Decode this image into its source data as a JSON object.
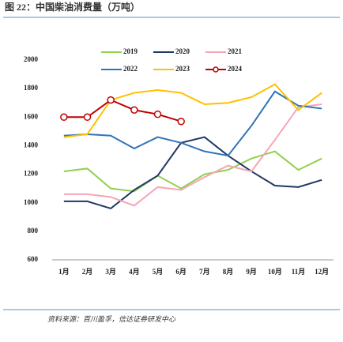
{
  "chart_data": {
    "type": "line",
    "title": "图 22：中国柴油消费量（万吨）",
    "source": "资料来源：百川盈孚，信达证券研发中心",
    "categories": [
      "1月",
      "2月",
      "3月",
      "4月",
      "5月",
      "6月",
      "7月",
      "8月",
      "9月",
      "10月",
      "11月",
      "12月"
    ],
    "ylim": [
      600,
      2000
    ],
    "yticks": [
      600,
      800,
      1000,
      1200,
      1400,
      1600,
      1800,
      2000
    ],
    "series": [
      {
        "name": "2019",
        "color": "#92d050",
        "values": [
          1220,
          1240,
          1100,
          1080,
          1190,
          1100,
          1200,
          1230,
          1310,
          1360,
          1230,
          1310
        ]
      },
      {
        "name": "2020",
        "color": "#1f3864",
        "values": [
          1010,
          1010,
          960,
          1090,
          1190,
          1420,
          1460,
          1330,
          1220,
          1120,
          1110,
          1160
        ]
      },
      {
        "name": "2021",
        "color": "#f4a6b6",
        "values": [
          1060,
          1060,
          1040,
          980,
          1110,
          1090,
          1180,
          1260,
          1220,
          1440,
          1670,
          1690
        ]
      },
      {
        "name": "2022",
        "color": "#2e75b6",
        "values": [
          1470,
          1480,
          1470,
          1380,
          1460,
          1420,
          1360,
          1330,
          1540,
          1780,
          1680,
          1660
        ]
      },
      {
        "name": "2023",
        "color": "#ffc000",
        "values": [
          1460,
          1480,
          1720,
          1770,
          1790,
          1770,
          1690,
          1700,
          1740,
          1830,
          1650,
          1770
        ]
      },
      {
        "name": "2024",
        "color": "#c00000",
        "marker": true,
        "values": [
          1600,
          1600,
          1720,
          1650,
          1620,
          1570,
          null,
          null,
          null,
          null,
          null,
          null
        ]
      }
    ]
  }
}
